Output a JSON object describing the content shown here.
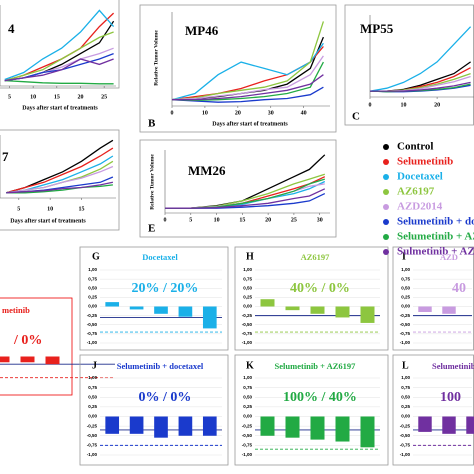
{
  "chart_data": [
    {
      "type": "line",
      "title": "4",
      "x_label": "Days after start of treatments",
      "xlim": [
        3,
        27.5
      ],
      "xticks": [
        5,
        10,
        15,
        20,
        25
      ],
      "ylim": [
        0,
        15
      ],
      "x": [
        4,
        8,
        12,
        16,
        20,
        24,
        27
      ],
      "series": [
        {
          "color": "#000000",
          "values": [
            1,
            1.5,
            2.5,
            4,
            6,
            8,
            12
          ]
        },
        {
          "color": "#e8211d",
          "values": [
            1,
            2,
            3.5,
            5,
            7,
            11,
            13.5
          ]
        },
        {
          "color": "#1ab0e8",
          "values": [
            1.2,
            2.5,
            5,
            7,
            10,
            14,
            11
          ]
        },
        {
          "color": "#8dc63f",
          "values": [
            1,
            2,
            3,
            5,
            7,
            9,
            10
          ]
        },
        {
          "color": "#c89be0",
          "values": [
            1,
            1.5,
            2.5,
            3.5,
            5,
            6,
            7
          ]
        },
        {
          "color": "#1a3acc",
          "values": [
            1,
            1.5,
            2.5,
            3,
            4,
            5,
            6
          ]
        },
        {
          "color": "#22aa44",
          "values": [
            1,
            0.8,
            0.6,
            0.5,
            0.5,
            0.4,
            0.4
          ]
        },
        {
          "color": "#7030a0",
          "values": [
            1,
            1.5,
            2,
            3,
            5,
            4,
            5
          ]
        }
      ]
    },
    {
      "type": "line",
      "title": "MP46",
      "panel": "B",
      "x_label": "Days after start of treatments",
      "y_label": "Relative Tumor Volume",
      "xlim": [
        0,
        48
      ],
      "xticks": [
        0,
        10,
        20,
        30,
        40
      ],
      "ylim": [
        0,
        15
      ],
      "x": [
        0,
        7,
        14,
        21,
        28,
        35,
        42,
        46
      ],
      "series": [
        {
          "color": "#000000",
          "values": [
            1,
            1.2,
            1.5,
            2,
            2.5,
            3.5,
            6,
            11
          ]
        },
        {
          "color": "#e8211d",
          "values": [
            1,
            1.5,
            2,
            2.8,
            4,
            5,
            7,
            9.5
          ]
        },
        {
          "color": "#1ab0e8",
          "values": [
            1,
            2,
            5,
            7,
            6,
            5,
            7,
            10
          ]
        },
        {
          "color": "#8dc63f",
          "values": [
            1,
            1.3,
            2,
            2.5,
            3,
            4,
            7,
            13.5
          ]
        },
        {
          "color": "#c89be0",
          "values": [
            1,
            1.2,
            1.6,
            2,
            2.6,
            3,
            5,
            8
          ]
        },
        {
          "color": "#1a3acc",
          "values": [
            1,
            0.8,
            0.6,
            0.7,
            1,
            1.2,
            1.8,
            3
          ]
        },
        {
          "color": "#22aa44",
          "values": [
            1,
            0.9,
            1,
            1.2,
            1.5,
            2,
            3,
            7
          ]
        },
        {
          "color": "#7030a0",
          "values": [
            1,
            1,
            1.2,
            1.5,
            2,
            2.5,
            3.5,
            5
          ]
        }
      ]
    },
    {
      "type": "line",
      "title": "MP55",
      "panel": "C",
      "xlim": [
        0,
        31
      ],
      "xticks": [
        0,
        10,
        20
      ],
      "ylim": [
        0,
        14
      ],
      "x": [
        0,
        5,
        10,
        15,
        20,
        25,
        30
      ],
      "series": [
        {
          "color": "#000000",
          "values": [
            1,
            1,
            1.3,
            2,
            3,
            4,
            6
          ]
        },
        {
          "color": "#e8211d",
          "values": [
            1,
            1,
            1.2,
            1.8,
            2.5,
            3.5,
            5
          ]
        },
        {
          "color": "#1ab0e8",
          "values": [
            1,
            1.5,
            2.5,
            4,
            6,
            9,
            12
          ]
        },
        {
          "color": "#8dc63f",
          "values": [
            1,
            1,
            1.2,
            1.6,
            2.2,
            3,
            4
          ]
        },
        {
          "color": "#c89be0",
          "values": [
            1,
            1,
            1.1,
            1.4,
            2,
            2.6,
            3.5
          ]
        },
        {
          "color": "#1a3acc",
          "values": [
            1,
            0.9,
            0.9,
            1,
            1.2,
            1.5,
            2
          ]
        },
        {
          "color": "#22aa44",
          "values": [
            1,
            0.9,
            1,
            1.1,
            1.3,
            1.6,
            2.2
          ]
        },
        {
          "color": "#7030a0",
          "values": [
            1,
            1,
            1,
            1.2,
            1.5,
            1.9,
            2.5
          ]
        }
      ]
    },
    {
      "type": "line",
      "title": "7",
      "x_label": "Days after start of treatments",
      "xlim": [
        2,
        20.5
      ],
      "xticks": [
        5,
        10,
        15
      ],
      "ylim": [
        0,
        12
      ],
      "x": [
        3,
        6,
        9,
        12,
        15,
        18,
        20
      ],
      "series": [
        {
          "color": "#000000",
          "values": [
            1,
            2,
            3.5,
            5,
            7,
            9.5,
            11
          ]
        },
        {
          "color": "#e8211d",
          "values": [
            1,
            2,
            3,
            4.5,
            6,
            8,
            9.5
          ]
        },
        {
          "color": "#1ab0e8",
          "values": [
            1,
            1.5,
            2.5,
            3.5,
            5,
            6.5,
            8
          ]
        },
        {
          "color": "#8dc63f",
          "values": [
            1,
            1.5,
            2,
            3,
            4,
            5.5,
            7
          ]
        },
        {
          "color": "#c89be0",
          "values": [
            1,
            1.5,
            2,
            3,
            3.8,
            5,
            6
          ]
        },
        {
          "color": "#1a3acc",
          "values": [
            1,
            1.2,
            1.5,
            2,
            2.5,
            3,
            4
          ]
        },
        {
          "color": "#22aa44",
          "values": [
            1,
            1,
            1.2,
            1.5,
            2,
            2.2,
            2.5
          ]
        },
        {
          "color": "#7030a0",
          "values": [
            1,
            1.2,
            1.4,
            1.8,
            2,
            2.5,
            3
          ]
        }
      ]
    },
    {
      "type": "line",
      "title": "MM26",
      "panel": "E",
      "y_label": "Relative Tumor Volume",
      "xlim": [
        0,
        32
      ],
      "xticks": [
        0,
        5,
        10,
        15,
        20,
        25,
        30
      ],
      "ylim": [
        0,
        13
      ],
      "x": [
        0,
        5,
        10,
        15,
        20,
        25,
        28,
        31
      ],
      "series": [
        {
          "name": "Control",
          "color": "#000000",
          "values": [
            1,
            1,
            1.5,
            2.5,
            5,
            7.5,
            9,
            12
          ]
        },
        {
          "name": "Selumetinib",
          "color": "#e8211d",
          "values": [
            1,
            1,
            1.3,
            2,
            3.5,
            5,
            6,
            7.5
          ]
        },
        {
          "name": "Docetaxel",
          "color": "#1ab0e8",
          "values": [
            1,
            1,
            1.2,
            1.8,
            3,
            4,
            5,
            6.5
          ]
        },
        {
          "name": "AZ6197",
          "color": "#8dc63f",
          "values": [
            1,
            1,
            1.4,
            2.5,
            4,
            6,
            7,
            8
          ]
        },
        {
          "name": "AZD2014",
          "color": "#c89be0",
          "values": [
            1,
            1,
            1.3,
            2,
            3,
            4.5,
            5.5,
            6
          ]
        },
        {
          "name": "Selumetinib + do",
          "color": "#1a3acc",
          "values": [
            1,
            1,
            1,
            1.2,
            1.5,
            2,
            2.5,
            4
          ]
        },
        {
          "name": "Selumetinib + AZ",
          "color": "#22aa44",
          "values": [
            1,
            1,
            1.2,
            2,
            3,
            4.5,
            6,
            7
          ]
        },
        {
          "name": "Sulmetinib + AZ",
          "color": "#7030a0",
          "values": [
            1,
            1,
            1.1,
            1.5,
            2,
            3,
            3.5,
            5
          ]
        }
      ]
    },
    {
      "type": "bar",
      "panel": "G",
      "title": "Docetaxel",
      "annotation": "20% / 20%",
      "color": "#1ab0e8",
      "ylim": [
        -1,
        1
      ],
      "yticks": [
        {
          "value": 1,
          "label": "1,00"
        },
        {
          "value": 0.75,
          "label": "0,75"
        },
        {
          "value": 0.5,
          "label": "0,50"
        },
        {
          "value": 0.25,
          "label": "0,25"
        },
        {
          "value": 0,
          "label": "0,00"
        },
        {
          "value": -0.25,
          "label": "-0,25"
        },
        {
          "value": -0.5,
          "label": "-0,50"
        },
        {
          "value": -0.75,
          "label": "-0,75"
        },
        {
          "value": -1,
          "label": "-1,00"
        }
      ],
      "values": [
        0.12,
        -0.08,
        -0.2,
        -0.28,
        -0.6
      ],
      "hlines": [
        {
          "value": -0.3,
          "dash": false
        },
        {
          "value": -0.7,
          "dash": true
        }
      ]
    },
    {
      "type": "bar",
      "panel": "H",
      "title": "AZ6197",
      "annotation": "40% / 0%",
      "color": "#8dc63f",
      "ylim": [
        -1,
        1
      ],
      "yticks": [
        {
          "value": 1,
          "label": "1,00"
        },
        {
          "value": 0.75,
          "label": "0,75"
        },
        {
          "value": 0.5,
          "label": "0,50"
        },
        {
          "value": 0.25,
          "label": "0,25"
        },
        {
          "value": 0,
          "label": "0,00"
        },
        {
          "value": -0.25,
          "label": "-0,25"
        },
        {
          "value": -0.5,
          "label": "-0,50"
        },
        {
          "value": -0.75,
          "label": "-0,75"
        },
        {
          "value": -1,
          "label": "-1,00"
        }
      ],
      "values": [
        0.2,
        -0.1,
        -0.2,
        -0.3,
        -0.45
      ],
      "hlines": [
        {
          "value": -0.25,
          "dash": false
        },
        {
          "value": -0.7,
          "dash": true
        }
      ]
    },
    {
      "type": "bar",
      "panel": "I",
      "title": "AZD",
      "annotation": "40",
      "color": "#c89be0",
      "ylim": [
        -1,
        1
      ],
      "yticks": [
        {
          "value": 1,
          "label": "1,00"
        },
        {
          "value": 0.75,
          "label": "0,75"
        },
        {
          "value": 0.5,
          "label": "0,50"
        },
        {
          "value": 0.25,
          "label": "0,25"
        },
        {
          "value": 0,
          "label": "0,00"
        },
        {
          "value": -0.25,
          "label": "-0,25"
        },
        {
          "value": -0.5,
          "label": "-0,50"
        },
        {
          "value": -0.75,
          "label": "-0,75"
        },
        {
          "value": -1,
          "label": "-1,00"
        }
      ],
      "values": [
        -0.15,
        -0.2
      ],
      "hlines": [
        {
          "value": -0.25,
          "dash": false
        },
        {
          "value": -0.7,
          "dash": true
        }
      ]
    },
    {
      "type": "bar",
      "title": "metinib",
      "annotation": "/ 0%",
      "color": "#e8211d",
      "ylim": [
        -1,
        1
      ],
      "values": [
        -0.15,
        -0.15,
        -0.2
      ],
      "hlines": [
        {
          "value": -0.2,
          "dash": false
        },
        {
          "value": -0.55,
          "dash": true
        }
      ]
    },
    {
      "type": "bar",
      "panel": "J",
      "title": "Selumetinib + docetaxel",
      "annotation": "0% / 0%",
      "color": "#1a3acc",
      "ylim": [
        -1,
        1
      ],
      "yticks": [
        {
          "value": 1,
          "label": "1,00"
        },
        {
          "value": 0.75,
          "label": "0,75"
        },
        {
          "value": 0.5,
          "label": "0,50"
        },
        {
          "value": 0.25,
          "label": "0,25"
        },
        {
          "value": 0,
          "label": "0,00"
        },
        {
          "value": -0.25,
          "label": "-0,25"
        },
        {
          "value": -0.5,
          "label": "-0,50"
        },
        {
          "value": -0.75,
          "label": "-0,75"
        },
        {
          "value": -1,
          "label": "-1,00"
        }
      ],
      "values": [
        -0.45,
        -0.45,
        -0.55,
        -0.5,
        -0.5
      ],
      "hlines": [
        {
          "value": -0.35,
          "dash": false
        },
        {
          "value": -0.75,
          "dash": true
        }
      ]
    },
    {
      "type": "bar",
      "panel": "K",
      "title": "Selumetinib + AZ6197",
      "annotation": "100% / 40%",
      "color": "#22aa44",
      "ylim": [
        -1,
        1
      ],
      "yticks": [
        {
          "value": 1,
          "label": "1,00"
        },
        {
          "value": 0.75,
          "label": "0,75"
        },
        {
          "value": 0.5,
          "label": "0,50"
        },
        {
          "value": 0.25,
          "label": "0,25"
        },
        {
          "value": 0,
          "label": "0,00"
        },
        {
          "value": -0.25,
          "label": "-0,25"
        },
        {
          "value": -0.5,
          "label": "-0,50"
        },
        {
          "value": -0.75,
          "label": "-0,75"
        },
        {
          "value": -1,
          "label": "-1,00"
        }
      ],
      "values": [
        -0.5,
        -0.55,
        -0.6,
        -0.65,
        -0.8
      ],
      "hlines": [
        {
          "value": -0.35,
          "dash": false
        },
        {
          "value": -0.85,
          "dash": true
        }
      ]
    },
    {
      "type": "bar",
      "panel": "L",
      "title": "Selumetinib",
      "annotation": "100",
      "color": "#7030a0",
      "ylim": [
        -1,
        1
      ],
      "yticks": [
        {
          "value": 1,
          "label": "1,00"
        },
        {
          "value": 0.75,
          "label": "0,75"
        },
        {
          "value": 0.5,
          "label": "0,50"
        },
        {
          "value": 0.25,
          "label": "0,25"
        },
        {
          "value": 0,
          "label": "0,00"
        },
        {
          "value": -0.25,
          "label": "-0,25"
        },
        {
          "value": -0.5,
          "label": "-0,50"
        },
        {
          "value": -0.75,
          "label": "-0,75"
        },
        {
          "value": -1,
          "label": "-1,00"
        }
      ],
      "values": [
        -0.4,
        -0.45,
        -0.45
      ],
      "hlines": [
        {
          "value": -0.35,
          "dash": false
        },
        {
          "value": -0.75,
          "dash": true
        }
      ]
    }
  ]
}
